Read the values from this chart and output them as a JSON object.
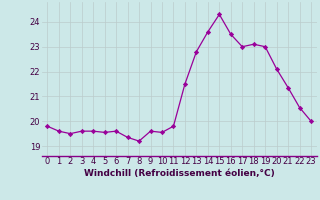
{
  "x": [
    0,
    1,
    2,
    3,
    4,
    5,
    6,
    7,
    8,
    9,
    10,
    11,
    12,
    13,
    14,
    15,
    16,
    17,
    18,
    19,
    20,
    21,
    22,
    23
  ],
  "y": [
    19.8,
    19.6,
    19.5,
    19.6,
    19.6,
    19.55,
    19.6,
    19.35,
    19.2,
    19.6,
    19.55,
    19.8,
    21.5,
    22.8,
    23.6,
    24.3,
    23.5,
    23.0,
    23.1,
    23.0,
    22.1,
    21.35,
    20.55,
    20.0
  ],
  "line_color": "#990099",
  "marker": "D",
  "marker_size": 2.2,
  "bg_color": "#cce8e8",
  "grid_color": "#bbcccc",
  "xlabel": "Windchill (Refroidissement éolien,°C)",
  "xlabel_color": "#440044",
  "xlabel_fontsize": 6.5,
  "ylabel_ticks": [
    19,
    20,
    21,
    22,
    23,
    24
  ],
  "xtick_labels": [
    "0",
    "1",
    "2",
    "3",
    "4",
    "5",
    "6",
    "7",
    "8",
    "9",
    "10",
    "11",
    "12",
    "13",
    "14",
    "15",
    "16",
    "17",
    "18",
    "19",
    "20",
    "21",
    "22",
    "23"
  ],
  "ylim": [
    18.6,
    24.8
  ],
  "xlim": [
    -0.5,
    23.5
  ],
  "tick_color": "#440044",
  "tick_fontsize": 6.0,
  "spine_color": "#880088"
}
